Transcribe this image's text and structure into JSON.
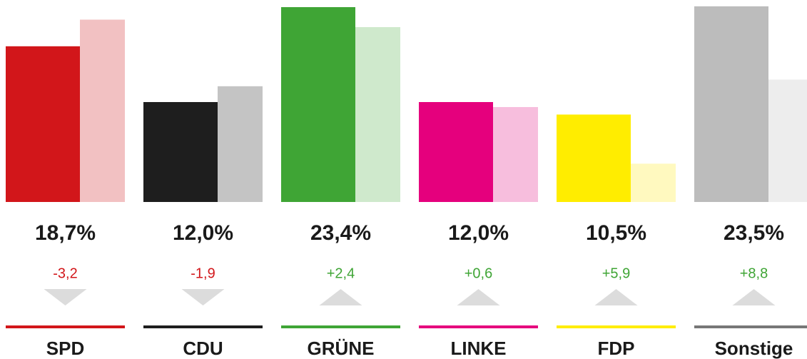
{
  "chart_data": {
    "type": "bar",
    "categories": [
      "SPD",
      "CDU",
      "GRÜNE",
      "LINKE",
      "FDP",
      "Sonstige"
    ],
    "values": [
      18.7,
      12.0,
      23.4,
      12.0,
      10.5,
      23.5
    ],
    "value_labels": [
      "18,7%",
      "12,0%",
      "23,4%",
      "12,0%",
      "10,5%",
      "23,5%"
    ],
    "previous_values": [
      21.9,
      13.9,
      21.0,
      11.4,
      4.6,
      14.7
    ],
    "changes": [
      -3.2,
      -1.9,
      2.4,
      0.6,
      5.9,
      8.8
    ],
    "change_labels": [
      "-3,2",
      "-1,9",
      "+2,4",
      "+0,6",
      "+5,9",
      "+8,8"
    ],
    "colors": [
      "#d2161a",
      "#1e1e1e",
      "#3fa535",
      "#e5007d",
      "#ffed00",
      "#bcbcbc"
    ],
    "previous_colors": [
      "#f2c1c2",
      "#c4c4c4",
      "#cfe9cc",
      "#f7bedd",
      "#fff9bf",
      "#ededed"
    ],
    "line_colors": [
      "#d2161a",
      "#1e1e1e",
      "#3fa535",
      "#e5007d",
      "#ffed00",
      "#777777"
    ],
    "ylim": [
      0,
      24
    ]
  }
}
